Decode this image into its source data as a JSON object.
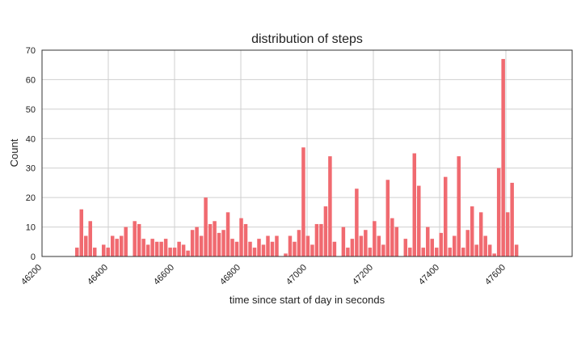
{
  "chart_data": {
    "type": "bar",
    "title": "distribution of steps",
    "xlabel": "time since start of day in seconds",
    "ylabel": "Count",
    "xlim": [
      46200,
      47800
    ],
    "ylim": [
      0,
      70
    ],
    "grid": true,
    "legend": "none",
    "bar_color": "#f06a70",
    "x_ticks": [
      46200,
      46400,
      46600,
      46800,
      47000,
      47200,
      47400,
      47600
    ],
    "y_ticks": [
      0,
      10,
      20,
      30,
      40,
      50,
      60,
      70
    ],
    "bin_width": 13.4,
    "bins_x_start": [
      46300.0,
      46313.4,
      46326.8,
      46340.2,
      46353.6,
      46367.0,
      46380.4,
      46393.8,
      46407.2,
      46420.6,
      46434.0,
      46447.4,
      46460.8,
      46474.2,
      46487.6,
      46501.0,
      46514.4,
      46527.8,
      46541.2,
      46554.6,
      46568.0,
      46581.4,
      46594.8,
      46608.2,
      46621.6,
      46635.0,
      46648.4,
      46661.8,
      46675.2,
      46688.6,
      46702.0,
      46715.4,
      46728.8,
      46742.2,
      46755.6,
      46769.0,
      46782.4,
      46795.8,
      46809.2,
      46822.6,
      46836.0,
      46849.4,
      46862.8,
      46876.2,
      46889.6,
      46903.0,
      46916.4,
      46929.8,
      46943.2,
      46956.6,
      46970.0,
      46983.4,
      46996.8,
      47010.2,
      47023.6,
      47037.0,
      47050.4,
      47063.8,
      47077.2,
      47090.6,
      47104.0,
      47117.4,
      47130.8,
      47144.2,
      47157.6,
      47171.0,
      47184.4,
      47197.8,
      47211.2,
      47224.6,
      47238.0,
      47251.4,
      47264.8,
      47278.2,
      47291.6,
      47305.0,
      47318.4,
      47331.8,
      47345.2,
      47358.6,
      47372.0,
      47385.4,
      47398.8,
      47412.2,
      47425.6,
      47439.0,
      47452.4,
      47465.8,
      47479.2,
      47492.6,
      47506.0,
      47519.4,
      47532.8,
      47546.2,
      47559.6,
      47573.0,
      47586.4,
      47599.8,
      47613.2,
      47626.6,
      47640.0,
      47653.4,
      47666.8,
      47680.2,
      47693.6,
      47707.0
    ],
    "values": [
      3,
      16,
      7,
      12,
      3,
      0,
      4,
      3,
      7,
      6,
      7,
      10,
      0,
      12,
      11,
      6,
      4,
      6,
      5,
      5,
      6,
      3,
      3,
      5,
      4,
      2,
      9,
      10,
      7,
      20,
      11,
      12,
      8,
      9,
      15,
      6,
      5,
      13,
      11,
      5,
      3,
      6,
      4,
      7,
      5,
      7,
      0,
      1,
      7,
      5,
      9,
      37,
      7,
      4,
      11,
      11,
      17,
      34,
      5,
      0,
      10,
      3,
      6,
      23,
      7,
      9,
      3,
      12,
      7,
      4,
      26,
      13,
      10,
      0,
      6,
      3,
      35,
      24,
      3,
      10,
      6,
      3,
      8,
      27,
      3,
      7,
      34,
      3,
      9,
      17,
      4,
      15,
      7,
      4,
      1,
      30,
      67,
      15,
      25,
      4,
      0,
      0,
      0,
      0,
      0,
      0
    ]
  }
}
